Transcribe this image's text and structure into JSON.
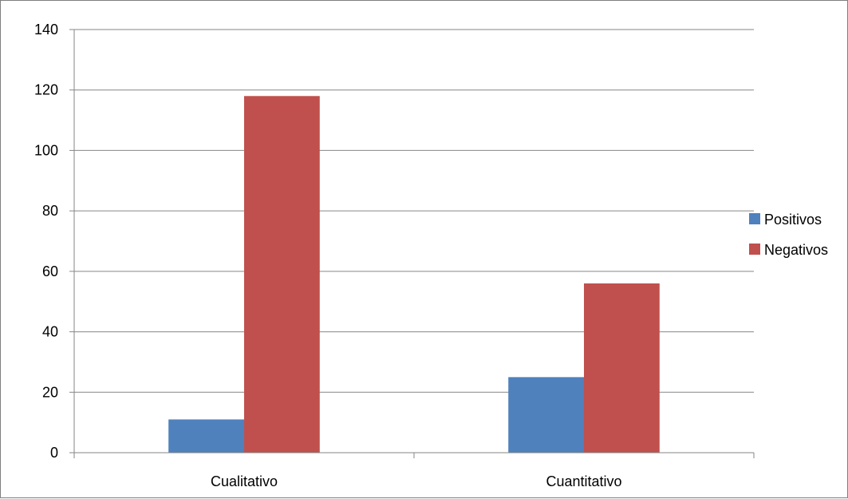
{
  "chart_data": {
    "type": "bar",
    "title": "",
    "xlabel": "",
    "ylabel": "",
    "categories": [
      "Cualitativo",
      "Cuantitativo"
    ],
    "series": [
      {
        "name": "Positivos",
        "values": [
          11,
          25
        ],
        "color": "#4f81bd"
      },
      {
        "name": "Negativos",
        "values": [
          118,
          56
        ],
        "color": "#c0504d"
      }
    ],
    "ylim": [
      0,
      140
    ],
    "yticks": [
      0,
      20,
      40,
      60,
      80,
      100,
      120,
      140
    ],
    "grid": true,
    "legend": "right"
  }
}
